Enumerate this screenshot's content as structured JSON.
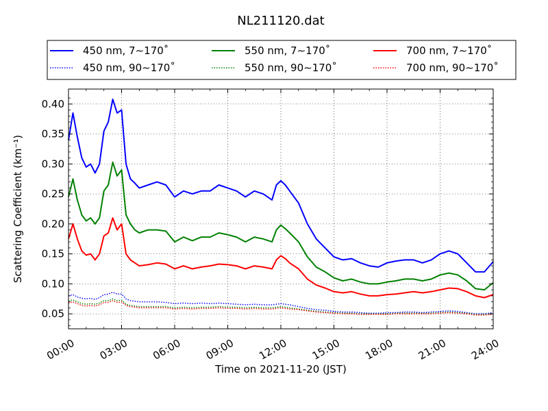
{
  "chart_data": {
    "type": "line",
    "title": "NL211120.dat",
    "xlabel": "Time on 2021-11-20 (JST)",
    "ylabel": "Scattering Coefficient (km⁻¹)",
    "xlim": [
      0,
      24
    ],
    "ylim": [
      0.025,
      0.425
    ],
    "x_ticks": [
      "00:00",
      "03:00",
      "06:00",
      "09:00",
      "12:00",
      "15:00",
      "18:00",
      "21:00",
      "24:00"
    ],
    "y_ticks": [
      "0.05",
      "0.10",
      "0.15",
      "0.20",
      "0.25",
      "0.30",
      "0.35",
      "0.40"
    ],
    "grid": true,
    "legend_position": "top, above plot",
    "x_unit": "hours",
    "x": [
      0,
      0.25,
      0.5,
      0.75,
      1,
      1.25,
      1.5,
      1.75,
      2,
      2.25,
      2.5,
      2.75,
      3,
      3.25,
      3.5,
      3.75,
      4,
      4.5,
      5,
      5.5,
      6,
      6.5,
      7,
      7.5,
      8,
      8.5,
      9,
      9.5,
      10,
      10.5,
      11,
      11.5,
      11.75,
      12,
      12.25,
      12.5,
      13,
      13.5,
      14,
      14.5,
      15,
      15.5,
      16,
      16.5,
      17,
      17.5,
      18,
      18.5,
      19,
      19.5,
      20,
      20.5,
      21,
      21.5,
      22,
      22.5,
      23,
      23.5,
      24
    ],
    "series": [
      {
        "name": "450 nm, 7∼170˚",
        "color": "#0000ff",
        "style": "solid",
        "values": [
          0.34,
          0.385,
          0.345,
          0.31,
          0.295,
          0.3,
          0.285,
          0.3,
          0.355,
          0.37,
          0.408,
          0.385,
          0.39,
          0.3,
          0.275,
          0.268,
          0.26,
          0.265,
          0.27,
          0.265,
          0.245,
          0.255,
          0.25,
          0.255,
          0.255,
          0.265,
          0.26,
          0.255,
          0.245,
          0.255,
          0.25,
          0.24,
          0.265,
          0.272,
          0.265,
          0.255,
          0.235,
          0.2,
          0.175,
          0.16,
          0.145,
          0.14,
          0.142,
          0.135,
          0.13,
          0.128,
          0.135,
          0.138,
          0.14,
          0.14,
          0.135,
          0.14,
          0.15,
          0.155,
          0.15,
          0.135,
          0.12,
          0.12,
          0.137
        ]
      },
      {
        "name": "550 nm, 7∼170˚",
        "color": "#008000",
        "style": "solid",
        "values": [
          0.245,
          0.275,
          0.24,
          0.215,
          0.205,
          0.21,
          0.2,
          0.21,
          0.255,
          0.265,
          0.303,
          0.28,
          0.29,
          0.215,
          0.2,
          0.19,
          0.185,
          0.19,
          0.19,
          0.188,
          0.17,
          0.178,
          0.172,
          0.178,
          0.178,
          0.185,
          0.182,
          0.178,
          0.17,
          0.178,
          0.175,
          0.17,
          0.19,
          0.198,
          0.192,
          0.185,
          0.17,
          0.145,
          0.128,
          0.12,
          0.11,
          0.105,
          0.108,
          0.103,
          0.1,
          0.1,
          0.103,
          0.105,
          0.108,
          0.108,
          0.105,
          0.108,
          0.115,
          0.118,
          0.115,
          0.105,
          0.092,
          0.09,
          0.102
        ]
      },
      {
        "name": "700 nm, 7∼170˚",
        "color": "#ff0000",
        "style": "solid",
        "values": [
          0.175,
          0.2,
          0.175,
          0.155,
          0.148,
          0.15,
          0.14,
          0.15,
          0.18,
          0.185,
          0.21,
          0.19,
          0.2,
          0.15,
          0.14,
          0.135,
          0.13,
          0.132,
          0.135,
          0.133,
          0.125,
          0.13,
          0.125,
          0.128,
          0.13,
          0.133,
          0.132,
          0.13,
          0.125,
          0.13,
          0.128,
          0.125,
          0.14,
          0.147,
          0.142,
          0.135,
          0.125,
          0.108,
          0.098,
          0.093,
          0.087,
          0.085,
          0.087,
          0.083,
          0.08,
          0.08,
          0.082,
          0.083,
          0.085,
          0.087,
          0.085,
          0.087,
          0.09,
          0.093,
          0.092,
          0.087,
          0.08,
          0.077,
          0.082
        ]
      },
      {
        "name": "450 nm, 90∼170˚",
        "color": "#0000ff",
        "style": "dotted",
        "values": [
          0.08,
          0.082,
          0.078,
          0.076,
          0.075,
          0.076,
          0.074,
          0.077,
          0.082,
          0.083,
          0.086,
          0.083,
          0.083,
          0.075,
          0.072,
          0.071,
          0.07,
          0.07,
          0.07,
          0.069,
          0.067,
          0.068,
          0.067,
          0.068,
          0.067,
          0.068,
          0.067,
          0.066,
          0.065,
          0.066,
          0.065,
          0.065,
          0.066,
          0.067,
          0.066,
          0.065,
          0.062,
          0.059,
          0.057,
          0.056,
          0.054,
          0.053,
          0.053,
          0.052,
          0.051,
          0.051,
          0.052,
          0.052,
          0.053,
          0.053,
          0.052,
          0.053,
          0.054,
          0.055,
          0.054,
          0.052,
          0.05,
          0.05,
          0.052
        ]
      },
      {
        "name": "550 nm, 90∼170˚",
        "color": "#008000",
        "style": "dotted",
        "values": [
          0.072,
          0.073,
          0.07,
          0.067,
          0.066,
          0.067,
          0.066,
          0.068,
          0.072,
          0.072,
          0.075,
          0.072,
          0.073,
          0.066,
          0.064,
          0.063,
          0.062,
          0.062,
          0.062,
          0.062,
          0.06,
          0.061,
          0.06,
          0.061,
          0.061,
          0.062,
          0.061,
          0.061,
          0.06,
          0.061,
          0.06,
          0.06,
          0.061,
          0.062,
          0.061,
          0.06,
          0.058,
          0.056,
          0.054,
          0.053,
          0.052,
          0.051,
          0.051,
          0.05,
          0.05,
          0.05,
          0.05,
          0.051,
          0.051,
          0.051,
          0.051,
          0.051,
          0.052,
          0.053,
          0.052,
          0.051,
          0.049,
          0.049,
          0.05
        ]
      },
      {
        "name": "700 nm, 90∼170˚",
        "color": "#ff0000",
        "style": "dotted",
        "values": [
          0.068,
          0.07,
          0.067,
          0.064,
          0.063,
          0.064,
          0.063,
          0.065,
          0.069,
          0.069,
          0.072,
          0.069,
          0.07,
          0.064,
          0.062,
          0.061,
          0.06,
          0.06,
          0.06,
          0.06,
          0.058,
          0.059,
          0.058,
          0.059,
          0.059,
          0.06,
          0.059,
          0.059,
          0.058,
          0.059,
          0.058,
          0.058,
          0.059,
          0.06,
          0.059,
          0.058,
          0.057,
          0.055,
          0.053,
          0.052,
          0.051,
          0.05,
          0.05,
          0.049,
          0.049,
          0.049,
          0.049,
          0.05,
          0.05,
          0.05,
          0.05,
          0.05,
          0.051,
          0.052,
          0.051,
          0.05,
          0.048,
          0.048,
          0.049
        ]
      }
    ],
    "legend_order": [
      0,
      3,
      1,
      4,
      2,
      5
    ]
  }
}
